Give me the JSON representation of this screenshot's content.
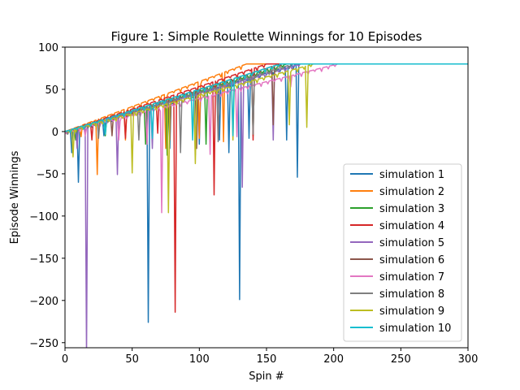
{
  "chart_data": {
    "type": "line",
    "title": "Figure 1: Simple Roulette Winnings for 10 Episodes",
    "xlabel": "Spin #",
    "ylabel": "Episode Winnings",
    "xlim": [
      0,
      300
    ],
    "ylim": [
      -256,
      100
    ],
    "xticks": [
      0,
      50,
      100,
      150,
      200,
      250,
      300
    ],
    "yticks": [
      100,
      50,
      0,
      -50,
      -100,
      -150,
      -200,
      -250
    ],
    "ytick_labels": [
      "100",
      "50",
      "0",
      "−50",
      "−100",
      "−150",
      "−200",
      "−250"
    ],
    "grid": false,
    "legend_position": "lower-right",
    "final_value": 80,
    "series": [
      {
        "name": "simulation 1",
        "color": "#1f77b4",
        "reach80": 173,
        "dips": [
          [
            5,
            -25
          ],
          [
            10,
            -60
          ],
          [
            29,
            -5
          ],
          [
            62,
            -226
          ],
          [
            78,
            -20
          ],
          [
            100,
            -15
          ],
          [
            115,
            -10
          ],
          [
            122,
            -25
          ],
          [
            130,
            -199
          ],
          [
            137,
            -8
          ],
          [
            165,
            -10
          ],
          [
            173,
            -54
          ]
        ]
      },
      {
        "name": "simulation 2",
        "color": "#ff7f0e",
        "reach80": 135,
        "dips": [
          [
            12,
            -6
          ],
          [
            24,
            -51
          ],
          [
            45,
            -10
          ],
          [
            75,
            -20
          ],
          [
            100,
            -8
          ],
          [
            118,
            -12
          ]
        ]
      },
      {
        "name": "simulation 3",
        "color": "#2ca02c",
        "reach80": 165,
        "dips": [
          [
            8,
            -10
          ],
          [
            30,
            -5
          ],
          [
            60,
            -15
          ],
          [
            76,
            -28
          ],
          [
            105,
            -15
          ],
          [
            140,
            -5
          ]
        ]
      },
      {
        "name": "simulation 4",
        "color": "#d62728",
        "reach80": 150,
        "dips": [
          [
            20,
            -10
          ],
          [
            45,
            -8
          ],
          [
            69,
            -2
          ],
          [
            82,
            -214
          ],
          [
            111,
            -75
          ],
          [
            140,
            -10
          ]
        ]
      },
      {
        "name": "simulation 5",
        "color": "#9467bd",
        "reach80": 175,
        "dips": [
          [
            9,
            -20
          ],
          [
            16,
            -265
          ],
          [
            39,
            -51
          ],
          [
            65,
            -20
          ],
          [
            97,
            -28
          ],
          [
            132,
            -66
          ],
          [
            155,
            -10
          ]
        ]
      },
      {
        "name": "simulation 6",
        "color": "#8c564b",
        "reach80": 160,
        "dips": [
          [
            35,
            -5
          ],
          [
            78,
            -10
          ],
          [
            98,
            -20
          ],
          [
            155,
            8
          ]
        ]
      },
      {
        "name": "simulation 7",
        "color": "#e377c2",
        "reach80": 203,
        "dips": [
          [
            15,
            -5
          ],
          [
            40,
            -10
          ],
          [
            61,
            -15
          ],
          [
            72,
            -96
          ],
          [
            108,
            -27
          ],
          [
            128,
            -6
          ],
          [
            168,
            53
          ]
        ]
      },
      {
        "name": "simulation 8",
        "color": "#7f7f7f",
        "reach80": 170,
        "dips": [
          [
            25,
            -8
          ],
          [
            55,
            -10
          ],
          [
            86,
            -25
          ],
          [
            114,
            -12
          ],
          [
            140,
            -3
          ]
        ]
      },
      {
        "name": "simulation 9",
        "color": "#bcbd22",
        "reach80": 185,
        "dips": [
          [
            6,
            -30
          ],
          [
            50,
            -49
          ],
          [
            77,
            -96
          ],
          [
            97,
            -38
          ],
          [
            125,
            -10
          ],
          [
            167,
            8
          ],
          [
            180,
            5
          ]
        ]
      },
      {
        "name": "simulation 10",
        "color": "#17becf",
        "reach80": 160,
        "dips": [
          [
            30,
            -3
          ],
          [
            65,
            -8
          ],
          [
            95,
            -10
          ],
          [
            125,
            -5
          ]
        ]
      }
    ]
  }
}
